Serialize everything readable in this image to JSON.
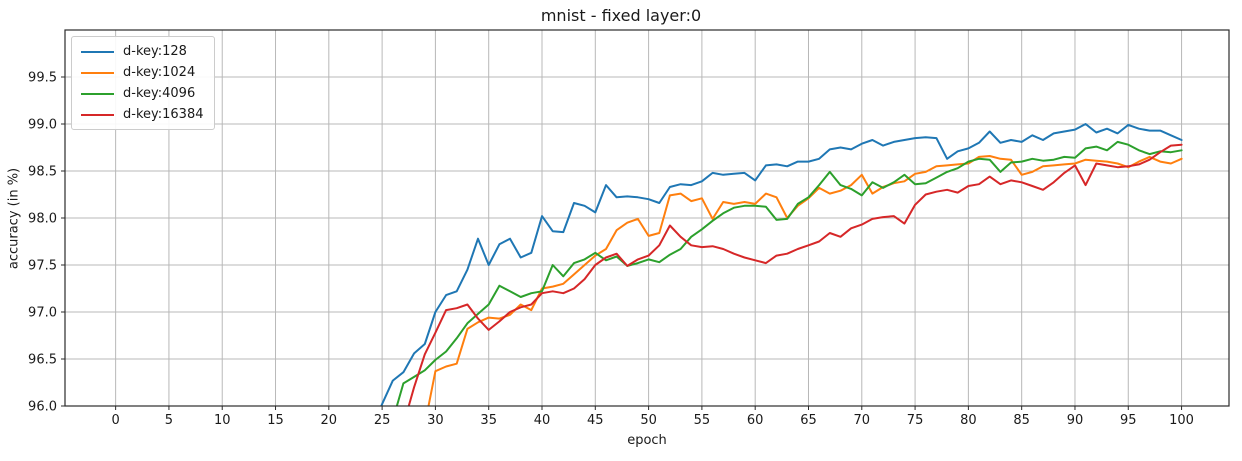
{
  "figure": {
    "title": "mnist - fixed layer:0",
    "xlabel": "epoch",
    "ylabel": "accuracy (in %)",
    "background": "#ffffff",
    "axis_text_color": "#1a1a1a",
    "grid_color": "#b8b8b8",
    "border_color": "#2b2b2b"
  },
  "chart_data": {
    "type": "line",
    "title": "mnist - fixed layer:0",
    "xlabel": "epoch",
    "ylabel": "accuracy (in %)",
    "grid": true,
    "legend_position": "upper-left",
    "xlim": [
      -4.75,
      104.45
    ],
    "ylim": [
      96.0,
      100.0
    ],
    "xticks": [
      0,
      5,
      10,
      15,
      20,
      25,
      30,
      35,
      40,
      45,
      50,
      55,
      60,
      65,
      70,
      75,
      80,
      85,
      90,
      95,
      100
    ],
    "yticks": [
      96.0,
      96.5,
      97.0,
      97.5,
      98.0,
      98.5,
      99.0,
      99.5
    ],
    "x_unit": "epoch",
    "note": "series values are accuracy % per epoch, starting at start_epoch; earlier epochs are below the 96.0 axis limit (clipped)",
    "series": [
      {
        "name": "d-key:128",
        "color": "#1f77b4",
        "start_epoch": 24,
        "values": [
          95.75,
          96.02,
          96.27,
          96.36,
          96.56,
          96.66,
          97.0,
          97.18,
          97.22,
          97.45,
          97.78,
          97.5,
          97.72,
          97.78,
          97.58,
          97.63,
          98.02,
          97.86,
          97.85,
          98.16,
          98.13,
          98.06,
          98.35,
          98.22,
          98.23,
          98.22,
          98.2,
          98.16,
          98.33,
          98.36,
          98.35,
          98.39,
          98.48,
          98.46,
          98.47,
          98.48,
          98.4,
          98.56,
          98.57,
          98.55,
          98.6,
          98.6,
          98.63,
          98.73,
          98.75,
          98.73,
          98.79,
          98.83,
          98.77,
          98.81,
          98.83,
          98.85,
          98.86,
          98.85,
          98.63,
          98.71,
          98.74,
          98.8,
          98.92,
          98.8,
          98.83,
          98.81,
          98.88,
          98.83,
          98.9,
          98.92,
          98.94,
          99.0,
          98.91,
          98.95,
          98.9,
          98.99,
          98.95,
          98.93,
          98.93,
          98.88,
          98.83
        ]
      },
      {
        "name": "d-key:1024",
        "color": "#ff7f0e",
        "start_epoch": 29,
        "values": [
          95.8,
          96.37,
          96.42,
          96.45,
          96.82,
          96.89,
          96.94,
          96.93,
          96.97,
          97.08,
          97.02,
          97.25,
          97.27,
          97.3,
          97.4,
          97.5,
          97.6,
          97.67,
          97.87,
          97.95,
          97.99,
          97.81,
          97.84,
          98.24,
          98.26,
          98.18,
          98.21,
          97.99,
          98.17,
          98.15,
          98.17,
          98.15,
          98.26,
          98.22,
          98.0,
          98.13,
          98.21,
          98.32,
          98.26,
          98.29,
          98.35,
          98.46,
          98.26,
          98.33,
          98.37,
          98.39,
          98.47,
          98.49,
          98.55,
          98.56,
          98.57,
          98.58,
          98.65,
          98.66,
          98.63,
          98.62,
          98.46,
          98.49,
          98.55,
          98.56,
          98.57,
          98.58,
          98.62,
          98.61,
          98.6,
          98.58,
          98.54,
          98.6,
          98.65,
          98.6,
          98.58,
          98.63
        ]
      },
      {
        "name": "d-key:4096",
        "color": "#2ca02c",
        "start_epoch": 26,
        "values": [
          95.85,
          96.24,
          96.31,
          96.38,
          96.49,
          96.58,
          96.72,
          96.88,
          96.98,
          97.08,
          97.28,
          97.22,
          97.16,
          97.2,
          97.22,
          97.5,
          97.38,
          97.52,
          97.56,
          97.63,
          97.55,
          97.59,
          97.49,
          97.52,
          97.56,
          97.53,
          97.61,
          97.67,
          97.8,
          97.88,
          97.97,
          98.05,
          98.11,
          98.13,
          98.13,
          98.12,
          97.98,
          97.99,
          98.15,
          98.22,
          98.35,
          98.49,
          98.35,
          98.31,
          98.24,
          98.38,
          98.32,
          98.38,
          98.46,
          98.36,
          98.37,
          98.43,
          98.49,
          98.53,
          98.6,
          98.63,
          98.62,
          98.49,
          98.59,
          98.6,
          98.63,
          98.61,
          98.62,
          98.65,
          98.64,
          98.74,
          98.76,
          98.72,
          98.81,
          98.78,
          98.72,
          98.68,
          98.71,
          98.7,
          98.72
        ]
      },
      {
        "name": "d-key:16384",
        "color": "#d62728",
        "start_epoch": 27,
        "values": [
          95.8,
          96.2,
          96.55,
          96.78,
          97.02,
          97.04,
          97.08,
          96.93,
          96.81,
          96.9,
          97.0,
          97.05,
          97.08,
          97.2,
          97.22,
          97.2,
          97.25,
          97.35,
          97.5,
          97.58,
          97.62,
          97.49,
          97.56,
          97.6,
          97.71,
          97.92,
          97.8,
          97.71,
          97.69,
          97.7,
          97.67,
          97.62,
          97.58,
          97.55,
          97.52,
          97.6,
          97.62,
          97.67,
          97.71,
          97.75,
          97.84,
          97.8,
          97.89,
          97.93,
          97.99,
          98.01,
          98.02,
          97.94,
          98.14,
          98.25,
          98.28,
          98.3,
          98.27,
          98.34,
          98.36,
          98.44,
          98.36,
          98.4,
          98.38,
          98.34,
          98.3,
          98.38,
          98.48,
          98.56,
          98.35,
          98.58,
          98.56,
          98.54,
          98.55,
          98.57,
          98.62,
          98.7,
          98.77,
          98.78
        ]
      }
    ]
  }
}
